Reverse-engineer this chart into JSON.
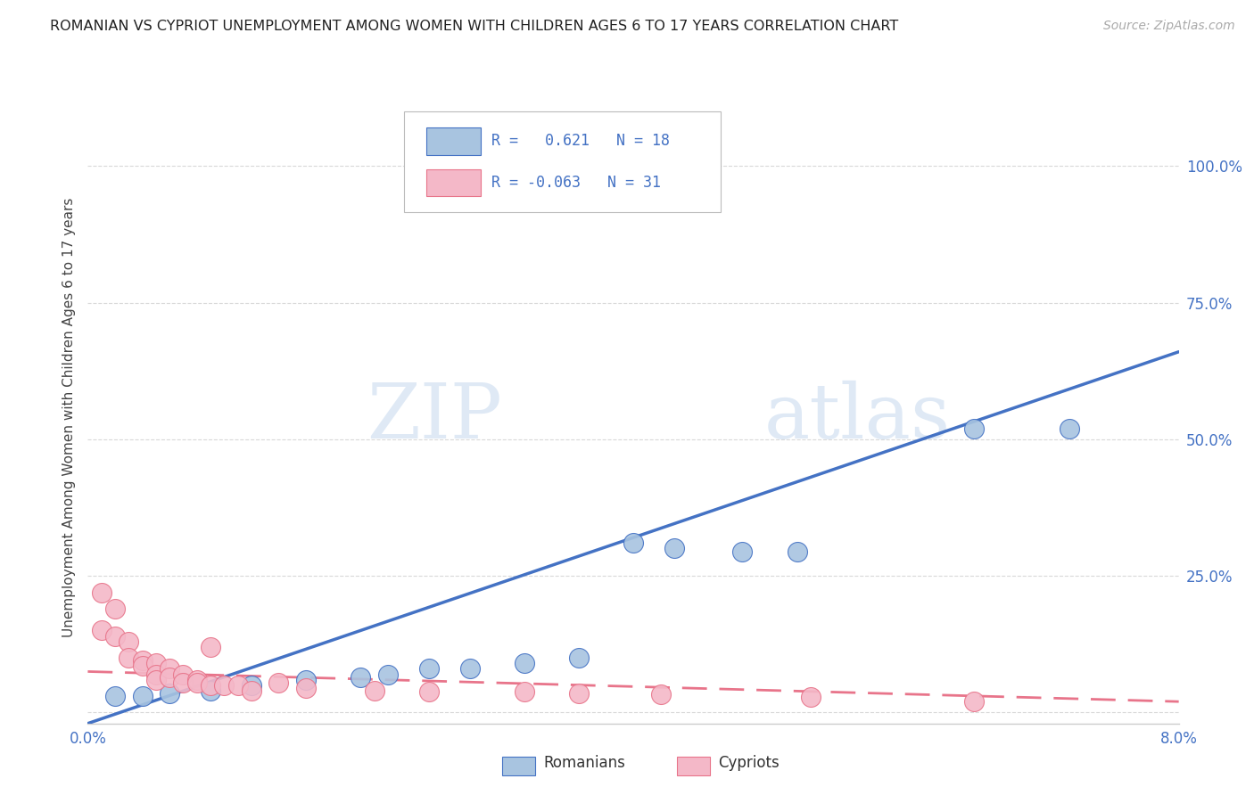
{
  "title": "ROMANIAN VS CYPRIOT UNEMPLOYMENT AMONG WOMEN WITH CHILDREN AGES 6 TO 17 YEARS CORRELATION CHART",
  "source": "Source: ZipAtlas.com",
  "ylabel": "Unemployment Among Women with Children Ages 6 to 17 years",
  "legend_romanian": "R =   0.621   N = 18",
  "legend_cypriot": "R = -0.063   N = 31",
  "legend_label_romanian": "Romanians",
  "legend_label_cypriot": "Cypriots",
  "romanian_color": "#a8c4e0",
  "cypriot_color": "#f4b8c8",
  "romanian_line_color": "#4472c4",
  "cypriot_line_color": "#e8748a",
  "watermark_zip": "ZIP",
  "watermark_atlas": "atlas",
  "romanian_points": [
    [
      0.002,
      0.03
    ],
    [
      0.004,
      0.03
    ],
    [
      0.006,
      0.035
    ],
    [
      0.009,
      0.04
    ],
    [
      0.012,
      0.05
    ],
    [
      0.016,
      0.06
    ],
    [
      0.02,
      0.065
    ],
    [
      0.022,
      0.07
    ],
    [
      0.025,
      0.08
    ],
    [
      0.028,
      0.08
    ],
    [
      0.032,
      0.09
    ],
    [
      0.036,
      0.1
    ],
    [
      0.04,
      0.31
    ],
    [
      0.043,
      0.3
    ],
    [
      0.048,
      0.295
    ],
    [
      0.052,
      0.295
    ],
    [
      0.065,
      0.52
    ],
    [
      0.072,
      0.52
    ]
  ],
  "cypriot_points": [
    [
      0.001,
      0.22
    ],
    [
      0.001,
      0.15
    ],
    [
      0.002,
      0.19
    ],
    [
      0.002,
      0.14
    ],
    [
      0.003,
      0.13
    ],
    [
      0.003,
      0.1
    ],
    [
      0.004,
      0.095
    ],
    [
      0.004,
      0.085
    ],
    [
      0.005,
      0.09
    ],
    [
      0.005,
      0.07
    ],
    [
      0.005,
      0.06
    ],
    [
      0.006,
      0.08
    ],
    [
      0.006,
      0.065
    ],
    [
      0.007,
      0.07
    ],
    [
      0.007,
      0.055
    ],
    [
      0.008,
      0.06
    ],
    [
      0.008,
      0.055
    ],
    [
      0.009,
      0.12
    ],
    [
      0.009,
      0.05
    ],
    [
      0.01,
      0.05
    ],
    [
      0.011,
      0.05
    ],
    [
      0.012,
      0.04
    ],
    [
      0.014,
      0.055
    ],
    [
      0.016,
      0.045
    ],
    [
      0.021,
      0.04
    ],
    [
      0.025,
      0.038
    ],
    [
      0.032,
      0.038
    ],
    [
      0.036,
      0.035
    ],
    [
      0.042,
      0.033
    ],
    [
      0.053,
      0.028
    ],
    [
      0.065,
      0.02
    ]
  ],
  "romanian_line": [
    [
      0.0,
      -0.02
    ],
    [
      0.08,
      0.66
    ]
  ],
  "cypriot_line": [
    [
      0.0,
      0.075
    ],
    [
      0.08,
      0.02
    ]
  ],
  "xlim": [
    0.0,
    0.08
  ],
  "ylim": [
    -0.02,
    1.1
  ],
  "ytick_positions": [
    0.0,
    0.25,
    0.5,
    0.75,
    1.0
  ],
  "ytick_labels": [
    "",
    "25.0%",
    "50.0%",
    "75.0%",
    "100.0%"
  ],
  "xtick_positions": [
    0.0,
    0.01,
    0.02,
    0.03,
    0.04,
    0.05,
    0.06,
    0.07,
    0.08
  ],
  "xtick_labels": [
    "0.0%",
    "",
    "",
    "",
    "",
    "",
    "",
    "",
    "8.0%"
  ],
  "background_color": "#ffffff",
  "grid_color": "#d0d0d0"
}
